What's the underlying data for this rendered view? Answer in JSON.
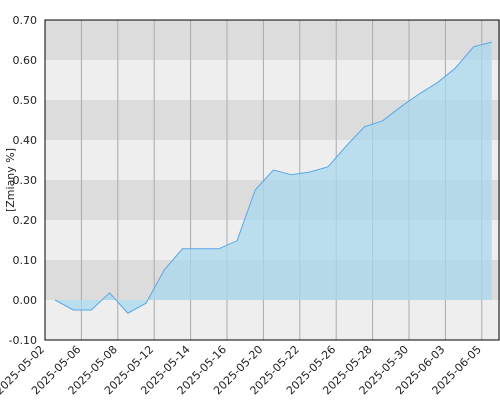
{
  "chart_data": {
    "type": "area",
    "y_label": "[Zmiany %]",
    "categories": [
      "2025-05-02",
      null,
      "2025-05-06",
      null,
      "2025-05-08",
      null,
      "2025-05-12",
      null,
      "2025-05-14",
      null,
      "2025-05-16",
      null,
      "2025-05-20",
      null,
      "2025-05-22",
      null,
      "2025-05-26",
      null,
      "2025-05-28",
      null,
      "2025-05-30",
      null,
      "2025-06-03",
      null,
      "2025-06-05"
    ],
    "values": [
      0,
      -0.025,
      -0.025,
      0.018,
      -0.033,
      -0.008,
      0.075,
      0.128,
      0.128,
      0.128,
      0.148,
      0.275,
      0.325,
      0.313,
      0.32,
      0.333,
      0.385,
      0.433,
      0.448,
      0.483,
      0.515,
      0.543,
      0.58,
      0.633,
      0.645
    ],
    "color": "#5aa6e6",
    "fill": "#a8d8ee",
    "ylim": [
      -0.1,
      0.7
    ],
    "yticks": [
      {
        "value": -0.1,
        "label": "-0.10"
      },
      {
        "value": 0,
        "label": "0.00"
      },
      {
        "value": 0.1,
        "label": "0.10"
      },
      {
        "value": 0.2,
        "label": "0.20"
      },
      {
        "value": 0.3,
        "label": "0.30"
      },
      {
        "value": 0.4,
        "label": "0.40"
      },
      {
        "value": 0.5,
        "label": "0.50"
      },
      {
        "value": 0.6,
        "label": "0.60"
      },
      {
        "value": 0.7,
        "label": "0.70"
      }
    ],
    "grid": true
  }
}
